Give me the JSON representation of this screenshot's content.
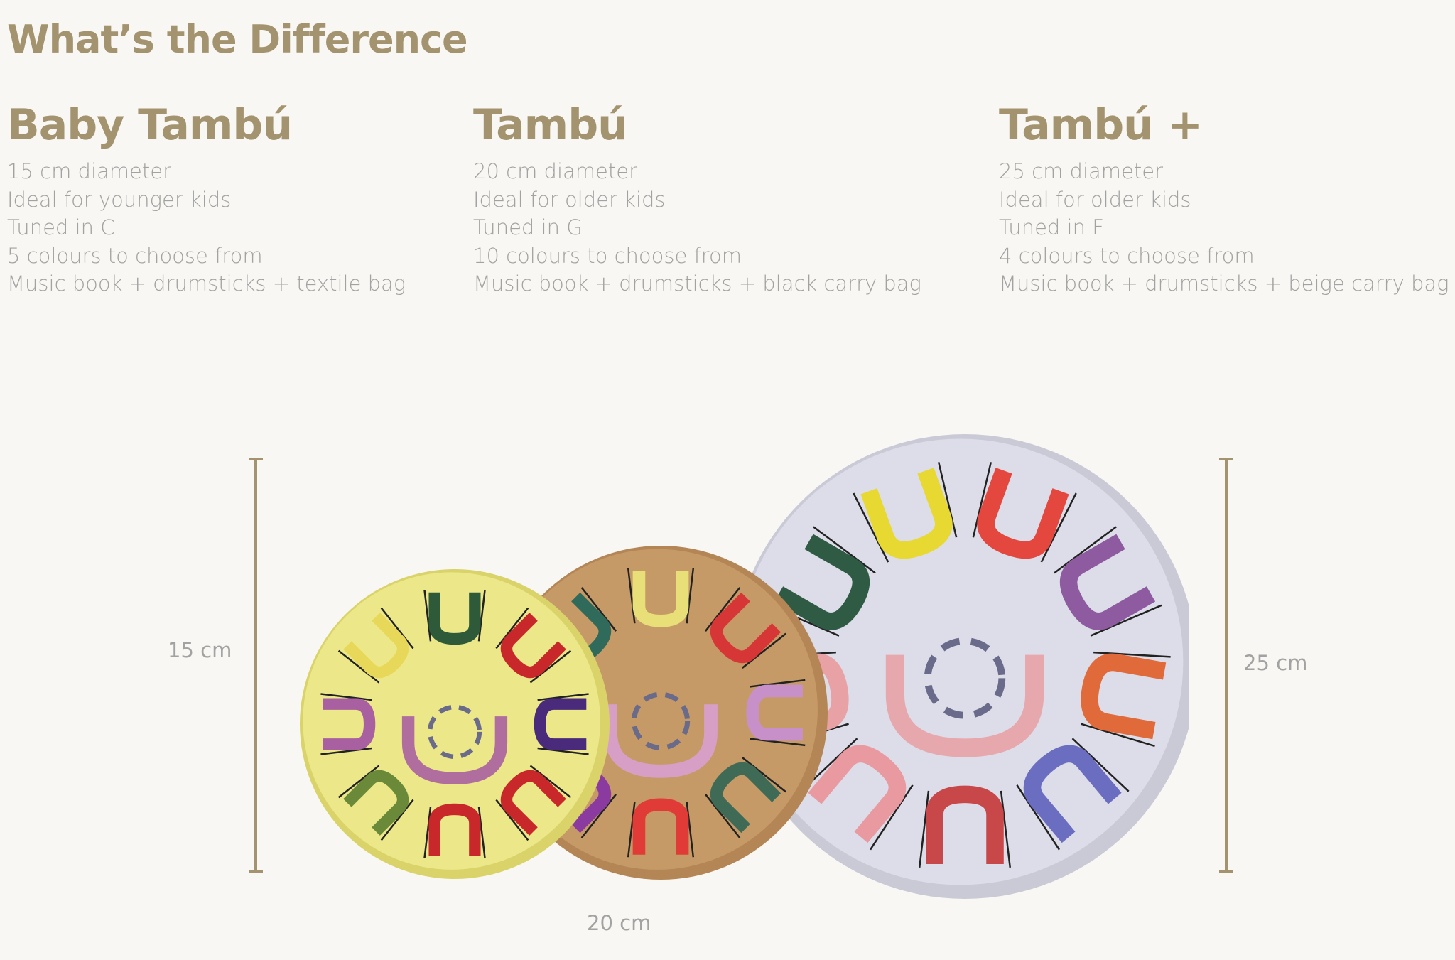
{
  "header": {
    "title": "What’s the Difference"
  },
  "products": [
    {
      "name": "Baby Tambú",
      "details": [
        "15 cm diameter",
        "Ideal for younger kids",
        "Tuned in C",
        "5 colours to choose from",
        "Music book + drumsticks + textile bag"
      ]
    },
    {
      "name": "Tambú",
      "details": [
        "20 cm diameter",
        "Ideal for older kids",
        "Tuned in G",
        "10 colours to choose from",
        "Music book + drumsticks + black carry bag"
      ]
    },
    {
      "name": "Tambú +",
      "details": [
        "25 cm diameter",
        "Ideal for older kids",
        "Tuned in F",
        "4 colours to choose from",
        "Music book + drumsticks + beige carry bag"
      ]
    }
  ],
  "sizes": {
    "small": "15 cm",
    "medium": "20 cm",
    "large": "25 cm"
  }
}
